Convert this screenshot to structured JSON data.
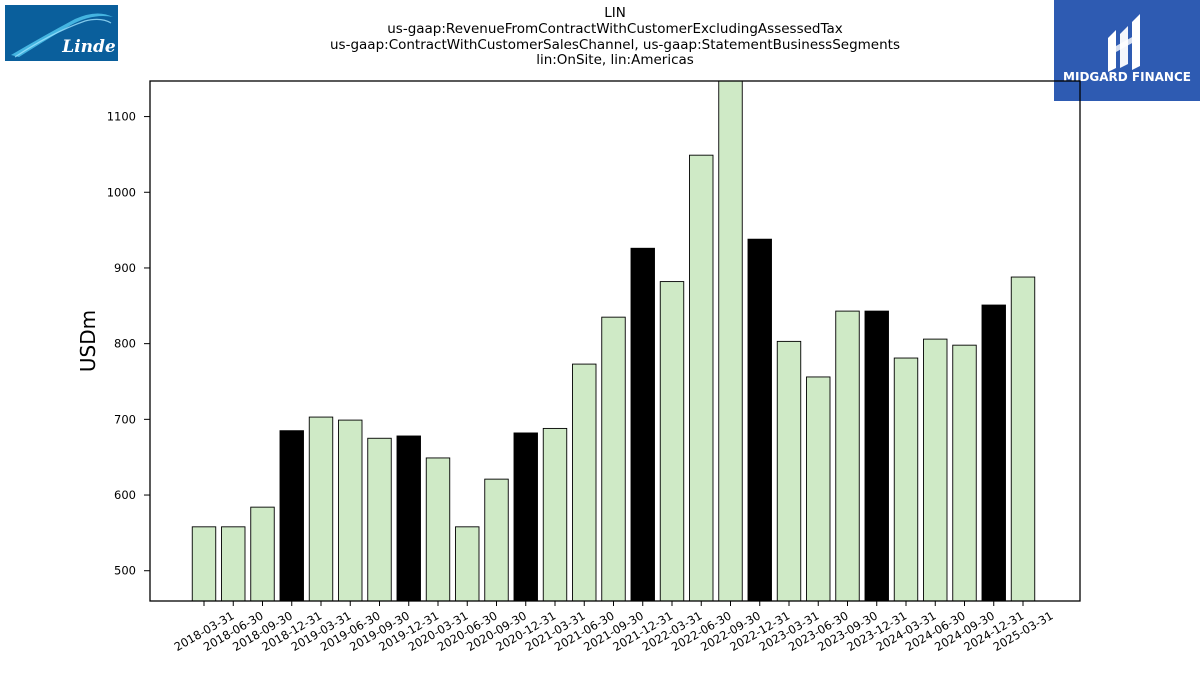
{
  "header": {
    "company_logo_text": "Linde",
    "brand_logo_text": "MIDGARD FINANCE"
  },
  "chart_data": {
    "type": "bar",
    "title_lines": [
      "LIN",
      "us-gaap:RevenueFromContractWithCustomerExcludingAssessedTax",
      "us-gaap:ContractWithCustomerSalesChannel, us-gaap:StatementBusinessSegments",
      "lin:OnSite, lin:Americas"
    ],
    "xlabel": "",
    "ylabel": "USDm",
    "ylim": [
      460,
      1147
    ],
    "yticks": [
      500,
      600,
      700,
      800,
      900,
      1000,
      1100
    ],
    "grid": false,
    "legend": "none",
    "colors": {
      "quarter": "#cfeac6",
      "year_end": "#000000",
      "edge": "#000000"
    },
    "categories": [
      "2018-03-31",
      "2018-06-30",
      "2018-09-30",
      "2018-12-31",
      "2019-03-31",
      "2019-06-30",
      "2019-09-30",
      "2019-12-31",
      "2020-03-31",
      "2020-06-30",
      "2020-09-30",
      "2020-12-31",
      "2021-03-31",
      "2021-06-30",
      "2021-09-30",
      "2021-12-31",
      "2022-03-31",
      "2022-06-30",
      "2022-09-30",
      "2022-12-31",
      "2023-03-31",
      "2023-06-30",
      "2023-09-30",
      "2023-12-31",
      "2024-03-31",
      "2024-06-30",
      "2024-09-30",
      "2024-12-31",
      "2025-03-31"
    ],
    "values": [
      558,
      558,
      584,
      685,
      703,
      699,
      675,
      678,
      649,
      558,
      621,
      682,
      688,
      773,
      835,
      926,
      882,
      1049,
      1150,
      938,
      803,
      756,
      843,
      843,
      781,
      806,
      798,
      851,
      888
    ],
    "year_end": [
      false,
      false,
      false,
      true,
      false,
      false,
      false,
      true,
      false,
      false,
      false,
      true,
      false,
      false,
      false,
      true,
      false,
      false,
      false,
      true,
      false,
      false,
      false,
      true,
      false,
      false,
      false,
      true,
      false
    ]
  }
}
